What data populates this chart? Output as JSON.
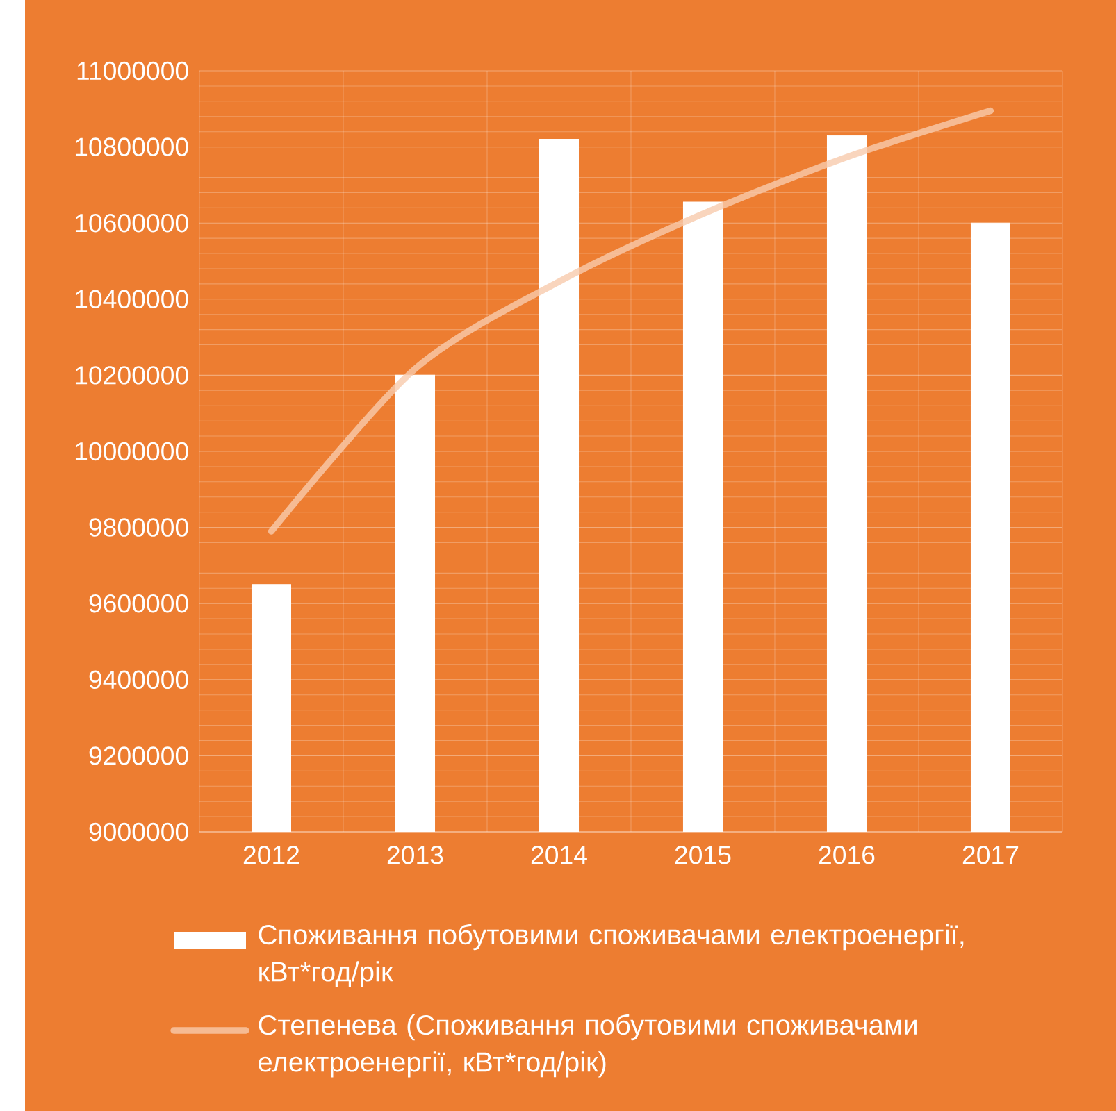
{
  "chart_data": {
    "type": "bar",
    "categories": [
      "2012",
      "2013",
      "2014",
      "2015",
      "2016",
      "2017"
    ],
    "series": [
      {
        "name": "Споживання побутовими споживачами електроенергії, кВт*год/рік",
        "color": "#ffffff",
        "values": [
          9650000,
          10200000,
          10820000,
          10655000,
          10830000,
          10600000
        ]
      },
      {
        "type": "line",
        "name": "Степенева (Споживання побутовими споживачами електроенергії, кВт*год/рік)",
        "color": "#f8cbad",
        "values": [
          9790000,
          10217000,
          10446000,
          10624000,
          10773000,
          10895000
        ]
      }
    ],
    "ylim": [
      9000000,
      11000000
    ],
    "yticks": [
      9000000,
      9200000,
      9400000,
      9600000,
      9800000,
      10000000,
      10200000,
      10400000,
      10600000,
      10800000,
      11000000
    ],
    "grid": true,
    "legend": "bottom"
  }
}
